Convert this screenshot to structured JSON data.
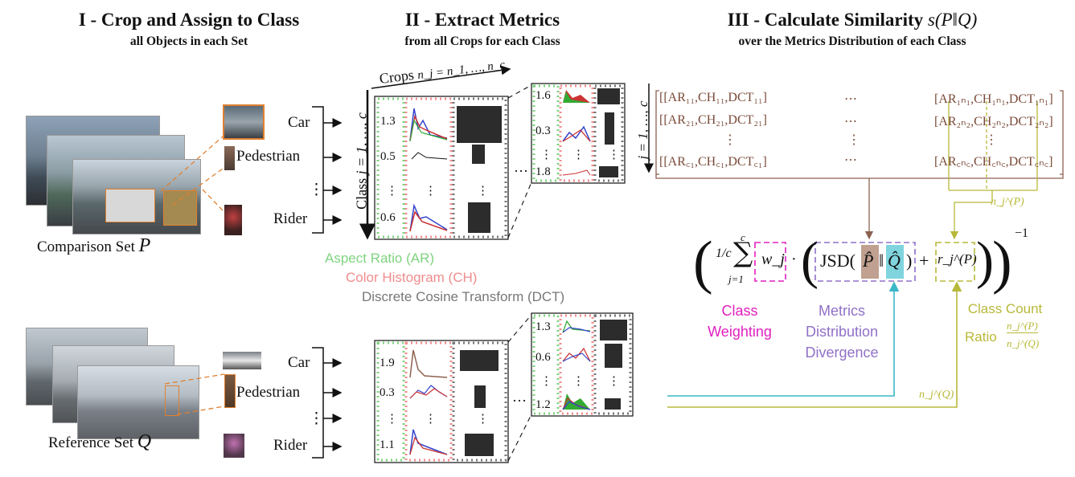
{
  "stage1": {
    "title": "I - Crop and Assign to Class",
    "subtitle": "all Objects in each Set"
  },
  "stage2": {
    "title": "II - Extract Metrics",
    "subtitle": "from all Crops for each Class"
  },
  "stage3": {
    "title": "III -  Calculate Similarity",
    "similarity": "s(P‖Q)",
    "subtitle": "over the Metrics Distribution of each Class"
  },
  "sets": {
    "comparison": "Comparison Set",
    "comparison_var": "P",
    "reference": "Reference Set",
    "reference_var": "Q"
  },
  "classes": {
    "car": "Car",
    "pedestrian": "Pedestrian",
    "dots": "⋮",
    "rider": "Rider"
  },
  "crops_axis": "Crops",
  "crops_formula": "n_j = n_1, …, n_c",
  "class_axis": "Class",
  "class_formula": "j = 1, …, c",
  "class_formula_short": "j = 1, …, c",
  "metrics_P": {
    "front": [
      "1.3",
      "0.5",
      "⋮",
      "0.6"
    ],
    "back": [
      "1.6",
      "0.3",
      "⋮",
      "1.8"
    ]
  },
  "metrics_Q": {
    "front": [
      "1.9",
      "0.3",
      "⋮",
      "1.1"
    ],
    "back": [
      "1.3",
      "0.6",
      "⋮",
      "1.2"
    ]
  },
  "ellipsis": "…",
  "legend": {
    "ar": "Aspect Ratio (AR)",
    "ch": "Color  Histogram  (CH)",
    "dct": "Discrete Cosine Transform (DCT)"
  },
  "matrix": {
    "rows": [
      {
        "first": "[[AR₁₁,CH₁₁,DCT₁₁]",
        "mid": "⋯",
        "last": "[AR₁ₙ₁,CH₁ₙ₁,DCT₁ₙ₁]"
      },
      {
        "first": "[[AR₂₁,CH₂₁,DCT₂₁]",
        "mid": "⋯",
        "last": "[AR₂ₙ₂,CH₂ₙ₂,DCT₂ₙ₂]"
      },
      {
        "first": "⋮",
        "mid": "⋮",
        "last": "⋮"
      },
      {
        "first": "[[AR꜀₁,CH꜀₁,DCT꜀₁]",
        "mid": "⋯",
        "last": "[AR꜀ₙ꜀,CH꜀ₙ꜀,DCT꜀ₙ꜀]"
      }
    ]
  },
  "formula": {
    "frac": "1/c",
    "sum_top": "c",
    "sum_bottom": "j=1",
    "weight": "w_j",
    "dot": "·",
    "jsd": "JSD(",
    "p_hat": "P̂",
    "sep": "‖",
    "q_hat": "Q̂",
    "close": ")",
    "plus": "+",
    "ratio": "r_j^(P)",
    "exponent": "−1"
  },
  "captions": {
    "weighting": [
      "Class",
      "Weighting"
    ],
    "divergence": [
      "Metrics",
      "Distribution",
      "Divergence"
    ],
    "count": "Class Count",
    "ratio_word": "Ratio",
    "ratio_num": "n_j^(P)",
    "ratio_den": "n_j^(Q)"
  },
  "arrow_labels": {
    "nP": "n_j^(P)",
    "nQ": "n_j^(Q)"
  },
  "colors": {
    "ar": "#7fd37f",
    "ch": "#f08c8c",
    "dct": "#777777",
    "brown": "#8d6250",
    "weighting": "#e020c0",
    "divergence": "#9070c8",
    "count": "#b8b83a",
    "cyan": "#3ab8c8",
    "orange": "#e08030"
  }
}
